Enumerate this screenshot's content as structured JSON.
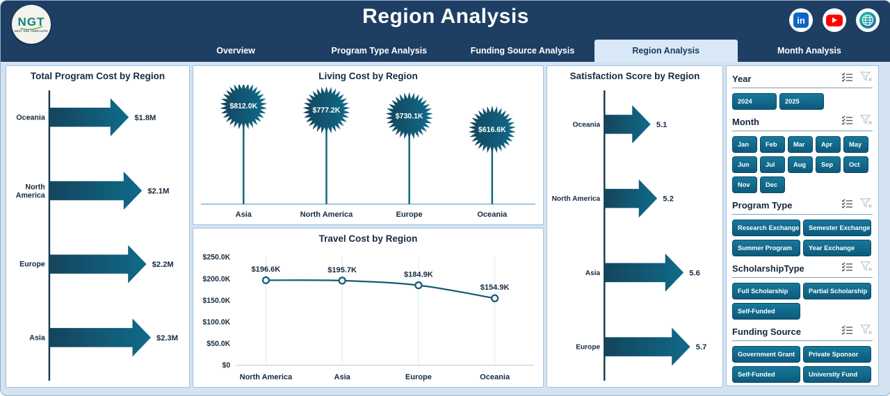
{
  "header": {
    "title": "Region Analysis",
    "logo": {
      "text": "NGT",
      "subtext": "NEXT GEN TEMPLATES"
    },
    "tabs": [
      {
        "label": "Overview",
        "active": false
      },
      {
        "label": "Program Type Analysis",
        "active": false
      },
      {
        "label": "Funding Source Analysis",
        "active": false
      },
      {
        "label": "Region Analysis",
        "active": true
      },
      {
        "label": "Month Analysis",
        "active": false
      }
    ],
    "social_icons": [
      {
        "name": "linkedin",
        "glyph": "in",
        "color": "#0a66c2"
      },
      {
        "name": "youtube",
        "color": "#ff0000"
      },
      {
        "name": "globe",
        "color": "#0aa6a0"
      }
    ]
  },
  "theme": {
    "header_bg": "#1e3e63",
    "background": "#d3e3f1",
    "panel_border": "#a3c0da",
    "active_tab_bg": "#d9e8f7",
    "arrow_gradient": [
      "#14445c",
      "#0f6b8a"
    ],
    "button_gradient": [
      "#17799b",
      "#0d5a7b"
    ],
    "line_color": "#175a72",
    "gridline_color": "#d9e9f6"
  },
  "filters": {
    "sections": [
      {
        "title": "Year",
        "options": [
          "2024",
          "2025"
        ]
      },
      {
        "title": "Month",
        "options": [
          "Jan",
          "Feb",
          "Mar",
          "Apr",
          "May",
          "Jun",
          "Jul",
          "Aug",
          "Sep",
          "Oct",
          "Nov",
          "Dec"
        ]
      },
      {
        "title": "Program Type",
        "options": [
          "Research Exchange",
          "Semester Exchange",
          "Summer Program",
          "Year Exchange"
        ]
      },
      {
        "title": "ScholarshipType",
        "options": [
          "Full Scholarship",
          "Partial Scholarship",
          "Self-Funded"
        ]
      },
      {
        "title": "Funding Source",
        "options": [
          "Government Grant",
          "Private Sponsor",
          "Self-Funded",
          "University Fund"
        ]
      }
    ]
  },
  "chart_data": [
    {
      "id": "total-program-cost",
      "type": "bar",
      "variant": "arrow",
      "title": "Total Program Cost by Region",
      "categories": [
        "Oceania",
        "North America",
        "Europe",
        "Asia"
      ],
      "values": [
        1.8,
        2.1,
        2.2,
        2.3
      ],
      "labels": [
        "$1.8M",
        "$2.1M",
        "$2.2M",
        "$2.3M"
      ],
      "xlim": [
        0,
        2.4
      ]
    },
    {
      "id": "living-cost",
      "type": "lollipop",
      "title": "Living Cost by Region",
      "categories": [
        "Asia",
        "North America",
        "Europe",
        "Oceania"
      ],
      "values": [
        812.0,
        777.2,
        730.1,
        616.6
      ],
      "labels": [
        "$812.0K",
        "$777.2K",
        "$730.1K",
        "$616.6K"
      ],
      "ylim": [
        0,
        860
      ]
    },
    {
      "id": "travel-cost",
      "type": "line",
      "title": "Travel Cost by Region",
      "categories": [
        "North America",
        "Asia",
        "Europe",
        "Oceania"
      ],
      "values": [
        196.6,
        195.7,
        184.9,
        154.9
      ],
      "labels": [
        "$196.6K",
        "$195.7K",
        "$184.9K",
        "$154.9K"
      ],
      "ylim": [
        0,
        250
      ],
      "yticks": [
        "$0",
        "$50.0K",
        "$100.0K",
        "$150.0K",
        "$200.0K",
        "$250.0K"
      ],
      "grid": "vertical"
    },
    {
      "id": "satisfaction-score",
      "type": "bar",
      "variant": "arrow",
      "title": "Satisfaction Score by Region",
      "categories": [
        "Oceania",
        "North America",
        "Asia",
        "Europe"
      ],
      "values": [
        5.1,
        5.2,
        5.6,
        5.7
      ],
      "labels": [
        "5.1",
        "5.2",
        "5.6",
        "5.7"
      ],
      "xlim": [
        4.4,
        5.75
      ]
    }
  ]
}
